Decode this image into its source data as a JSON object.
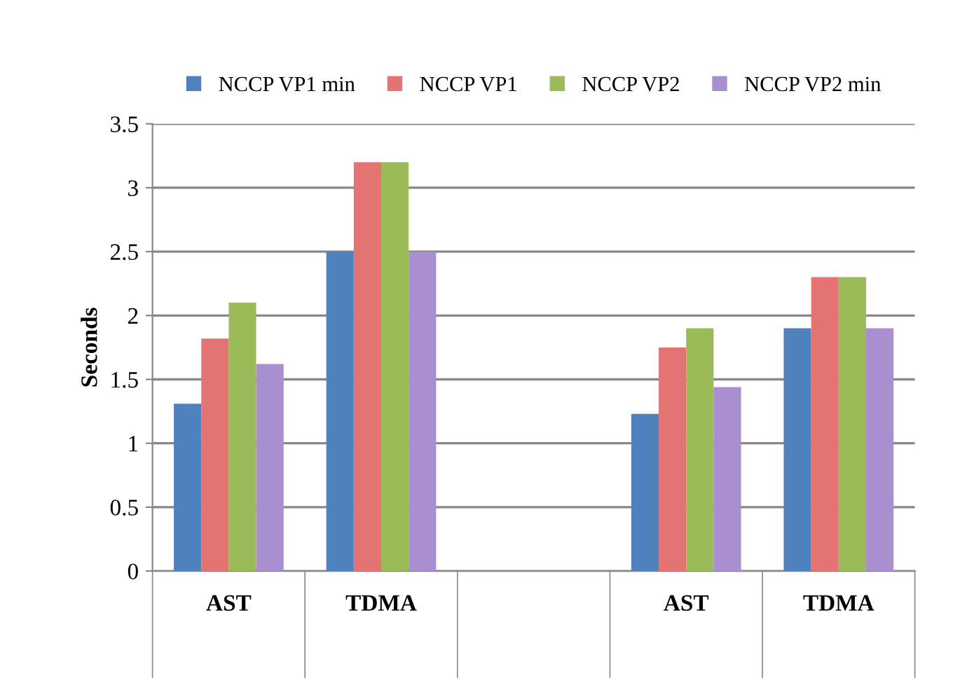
{
  "chart_data": {
    "type": "bar",
    "ylabel": "Seconds",
    "categories": [
      "AST",
      "TDMA",
      null,
      "AST",
      "TDMA"
    ],
    "series": [
      {
        "name": "NCCP VP1 min",
        "color": "#4f81bd",
        "values": [
          1.31,
          2.5,
          null,
          1.23,
          1.9
        ]
      },
      {
        "name": "NCCP VP1",
        "color": "#e57373",
        "values": [
          1.82,
          3.2,
          null,
          1.75,
          2.3
        ]
      },
      {
        "name": "NCCP VP2",
        "color": "#9bbb59",
        "values": [
          2.1,
          3.2,
          null,
          1.9,
          2.3
        ]
      },
      {
        "name": "NCCP VP2 min",
        "color": "#a98fd0",
        "values": [
          1.62,
          2.5,
          null,
          1.44,
          1.9
        ]
      }
    ],
    "ylim": [
      0,
      3.5
    ],
    "yticks": [
      0,
      0.5,
      1,
      1.5,
      2,
      2.5,
      3,
      3.5
    ],
    "grid": "y",
    "legend": "top"
  }
}
